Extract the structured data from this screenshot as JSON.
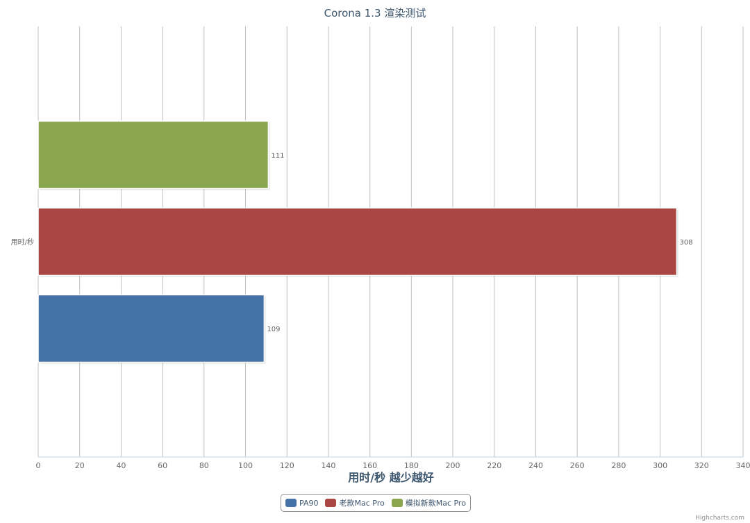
{
  "chart_data": {
    "type": "bar",
    "orientation": "horizontal",
    "title": "Corona 1.3 渲染测试",
    "categories": [
      "用时/秒"
    ],
    "series": [
      {
        "name": "PA90",
        "values": [
          109
        ],
        "color": "#4572a7"
      },
      {
        "name": "老款Mac Pro",
        "values": [
          308
        ],
        "color": "#aa4643"
      },
      {
        "name": "模拟新款Mac Pro",
        "values": [
          111
        ],
        "color": "#89a54e"
      }
    ],
    "xlabel": "用时/秒 越少越好",
    "ylabel": "",
    "xlim": [
      0,
      340
    ],
    "xticks": [
      0,
      20,
      40,
      60,
      80,
      100,
      120,
      140,
      160,
      180,
      200,
      220,
      240,
      260,
      280,
      300,
      320,
      340
    ],
    "grid": true,
    "data_labels": true,
    "legend_position": "bottom-center"
  },
  "credits": "Highcharts.com"
}
